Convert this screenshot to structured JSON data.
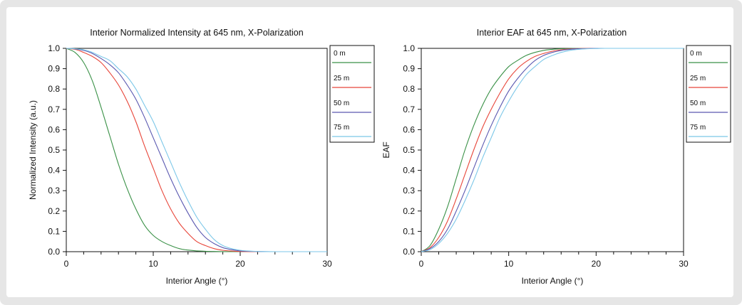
{
  "colors": {
    "s0": "#3a9147",
    "s25": "#e8463a",
    "s50": "#5a58b0",
    "s75": "#7cc7e8"
  },
  "chart_data": [
    {
      "type": "line",
      "title": "Interior Normalized Intensity at 645 nm, X-Polarization",
      "xlabel": "Interior Angle (°)",
      "ylabel": "Normalized Intensity (a.u.)",
      "xlim": [
        0,
        30
      ],
      "ylim": [
        0,
        1
      ],
      "xticks": [
        "0",
        "10",
        "20",
        "30"
      ],
      "yticks": [
        "0.0",
        "0.1",
        "0.2",
        "0.3",
        "0.4",
        "0.5",
        "0.6",
        "0.7",
        "0.8",
        "0.9",
        "1.0"
      ],
      "grid": false,
      "legend": "right, outside",
      "x": [
        0,
        1,
        2,
        3,
        4,
        5,
        6,
        7,
        8,
        9,
        10,
        11,
        12,
        13,
        14,
        15,
        16,
        17,
        18,
        19,
        20,
        21,
        22,
        23,
        24,
        25,
        26,
        27,
        28,
        29,
        30
      ],
      "series": [
        {
          "name": "0 m",
          "color": "#3a9147",
          "values": [
            1.0,
            0.98,
            0.93,
            0.84,
            0.71,
            0.57,
            0.43,
            0.31,
            0.21,
            0.13,
            0.08,
            0.05,
            0.03,
            0.015,
            0.008,
            0.004,
            0.002,
            0.001,
            0.0005,
            0.0002,
            0.0001,
            0,
            0,
            0,
            0,
            0,
            0,
            0,
            0,
            0,
            0
          ]
        },
        {
          "name": "25 m",
          "color": "#e8463a",
          "values": [
            1.0,
            0.995,
            0.98,
            0.96,
            0.93,
            0.88,
            0.82,
            0.74,
            0.64,
            0.52,
            0.41,
            0.3,
            0.21,
            0.14,
            0.09,
            0.05,
            0.03,
            0.015,
            0.007,
            0.003,
            0.001,
            0.0005,
            0.0002,
            0,
            0,
            0,
            0,
            0,
            0,
            0,
            0
          ]
        },
        {
          "name": "50 m",
          "color": "#5a58b0",
          "values": [
            1.0,
            0.997,
            0.99,
            0.975,
            0.95,
            0.92,
            0.88,
            0.82,
            0.75,
            0.66,
            0.56,
            0.46,
            0.36,
            0.27,
            0.19,
            0.12,
            0.07,
            0.04,
            0.02,
            0.01,
            0.004,
            0.002,
            0.001,
            0.0003,
            0,
            0,
            0,
            0,
            0,
            0,
            0
          ]
        },
        {
          "name": "75 m",
          "color": "#7cc7e8",
          "values": [
            1.0,
            0.998,
            0.993,
            0.98,
            0.96,
            0.94,
            0.9,
            0.86,
            0.8,
            0.72,
            0.64,
            0.54,
            0.44,
            0.34,
            0.25,
            0.17,
            0.11,
            0.06,
            0.03,
            0.015,
            0.007,
            0.003,
            0.001,
            0.0005,
            0,
            0,
            0,
            0,
            0,
            0,
            0
          ]
        }
      ]
    },
    {
      "type": "line",
      "title": "Interior EAF at 645 nm, X-Polarization",
      "xlabel": "Interior Angle (°)",
      "ylabel": "EAF",
      "xlim": [
        0,
        30
      ],
      "ylim": [
        0,
        1
      ],
      "xticks": [
        "0",
        "10",
        "20",
        "30"
      ],
      "yticks": [
        "0.0",
        "0.1",
        "0.2",
        "0.3",
        "0.4",
        "0.5",
        "0.6",
        "0.7",
        "0.8",
        "0.9",
        "1.0"
      ],
      "grid": false,
      "legend": "right, outside",
      "x": [
        0,
        1,
        2,
        3,
        4,
        5,
        6,
        7,
        8,
        9,
        10,
        11,
        12,
        13,
        14,
        15,
        16,
        17,
        18,
        19,
        20,
        21,
        22,
        23,
        24,
        25,
        26,
        27,
        28,
        29,
        30
      ],
      "series": [
        {
          "name": "0 m",
          "color": "#3a9147",
          "values": [
            0,
            0.03,
            0.11,
            0.22,
            0.36,
            0.5,
            0.62,
            0.72,
            0.8,
            0.86,
            0.91,
            0.94,
            0.965,
            0.98,
            0.99,
            0.995,
            0.998,
            0.999,
            1.0,
            1.0,
            1.0,
            1.0,
            1.0,
            1.0,
            1.0,
            1.0,
            1.0,
            1.0,
            1.0,
            1.0,
            1.0
          ]
        },
        {
          "name": "25 m",
          "color": "#e8463a",
          "values": [
            0,
            0.02,
            0.07,
            0.15,
            0.26,
            0.38,
            0.5,
            0.61,
            0.7,
            0.78,
            0.85,
            0.9,
            0.935,
            0.96,
            0.975,
            0.986,
            0.993,
            0.997,
            0.999,
            1.0,
            1.0,
            1.0,
            1.0,
            1.0,
            1.0,
            1.0,
            1.0,
            1.0,
            1.0,
            1.0,
            1.0
          ]
        },
        {
          "name": "50 m",
          "color": "#5a58b0",
          "values": [
            0,
            0.015,
            0.05,
            0.11,
            0.2,
            0.3,
            0.41,
            0.52,
            0.62,
            0.71,
            0.79,
            0.85,
            0.9,
            0.94,
            0.965,
            0.98,
            0.99,
            0.995,
            0.998,
            0.999,
            1.0,
            1.0,
            1.0,
            1.0,
            1.0,
            1.0,
            1.0,
            1.0,
            1.0,
            1.0,
            1.0
          ]
        },
        {
          "name": "75 m",
          "color": "#7cc7e8",
          "values": [
            0,
            0.01,
            0.04,
            0.09,
            0.16,
            0.25,
            0.35,
            0.46,
            0.56,
            0.66,
            0.74,
            0.81,
            0.87,
            0.91,
            0.945,
            0.965,
            0.98,
            0.99,
            0.995,
            0.998,
            0.999,
            1.0,
            1.0,
            1.0,
            1.0,
            1.0,
            1.0,
            1.0,
            1.0,
            1.0,
            1.0
          ]
        }
      ]
    }
  ]
}
